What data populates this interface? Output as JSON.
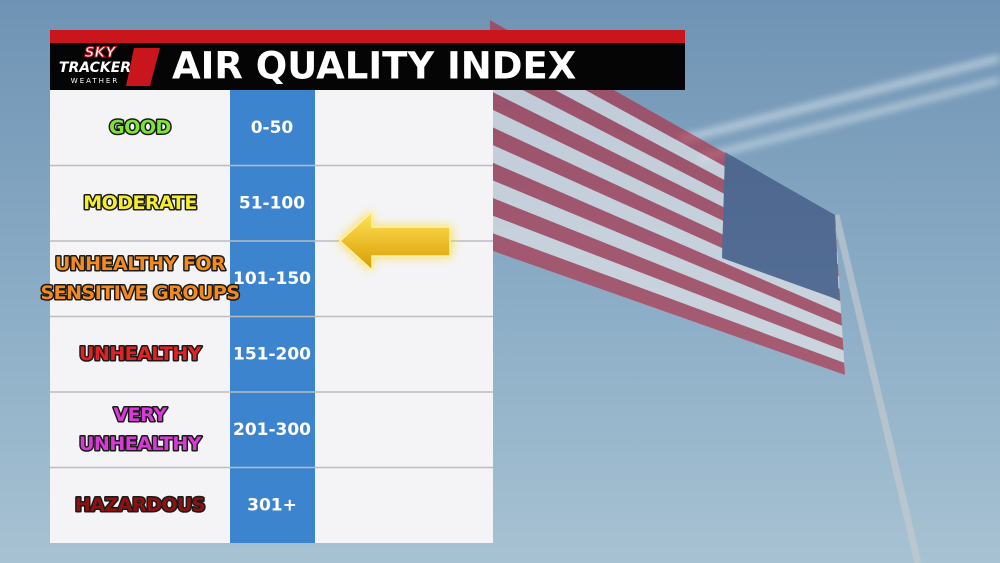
{
  "header": {
    "title": "AIR QUALITY INDEX",
    "logo": {
      "top": "SKY",
      "middle": "TRACKER",
      "bottom": "WEATHER"
    }
  },
  "table": {
    "rows": [
      {
        "category": [
          "GOOD"
        ],
        "range": "0-50",
        "color": "#7fe33a"
      },
      {
        "category": [
          "MODERATE"
        ],
        "range": "51-100",
        "color": "#f5ee2b"
      },
      {
        "category": [
          "UNHEALTHY FOR",
          "SENSITIVE GROUPS"
        ],
        "range": "101-150",
        "color": "#f28a1f"
      },
      {
        "category": [
          "UNHEALTHY"
        ],
        "range": "151-200",
        "color": "#e22222"
      },
      {
        "category": [
          "VERY",
          "UNHEALTHY"
        ],
        "range": "201-300",
        "color": "#d83ad8"
      },
      {
        "category": [
          "HAZARDOUS"
        ],
        "range": "301+",
        "color": "#8c1212"
      }
    ]
  }
}
